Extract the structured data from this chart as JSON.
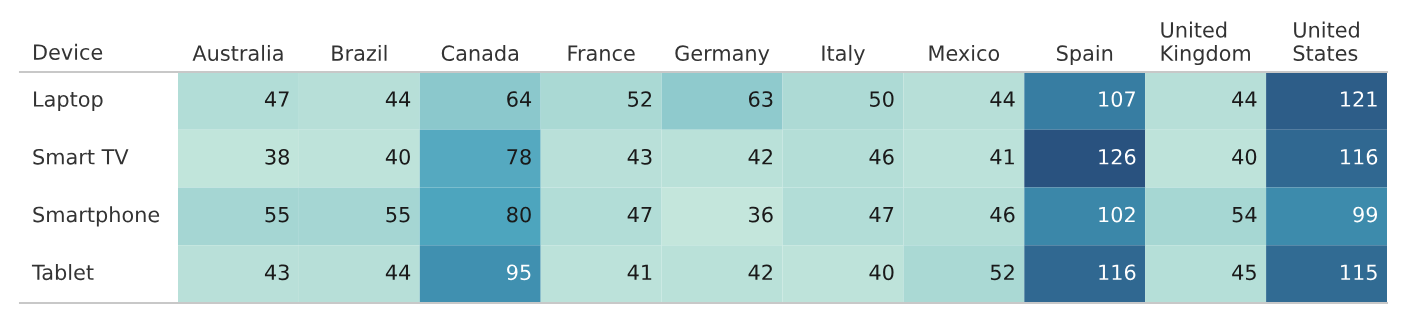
{
  "chart_data": {
    "type": "heatmap",
    "ylabel": "Device",
    "data_labels": true,
    "categories": [
      "Australia",
      "Brazil",
      "Canada",
      "France",
      "Germany",
      "Italy",
      "Mexico",
      "Spain",
      "United Kingdom",
      "United States"
    ],
    "y_categories": [
      "Laptop",
      "Smart TV",
      "Smartphone",
      "Tablet"
    ],
    "cells": [
      [
        47,
        44,
        64,
        52,
        63,
        50,
        44,
        107,
        44,
        121
      ],
      [
        38,
        40,
        78,
        43,
        42,
        46,
        41,
        126,
        40,
        116
      ],
      [
        55,
        55,
        80,
        47,
        36,
        47,
        46,
        102,
        54,
        99
      ],
      [
        43,
        44,
        95,
        41,
        42,
        40,
        52,
        116,
        45,
        115
      ]
    ]
  }
}
